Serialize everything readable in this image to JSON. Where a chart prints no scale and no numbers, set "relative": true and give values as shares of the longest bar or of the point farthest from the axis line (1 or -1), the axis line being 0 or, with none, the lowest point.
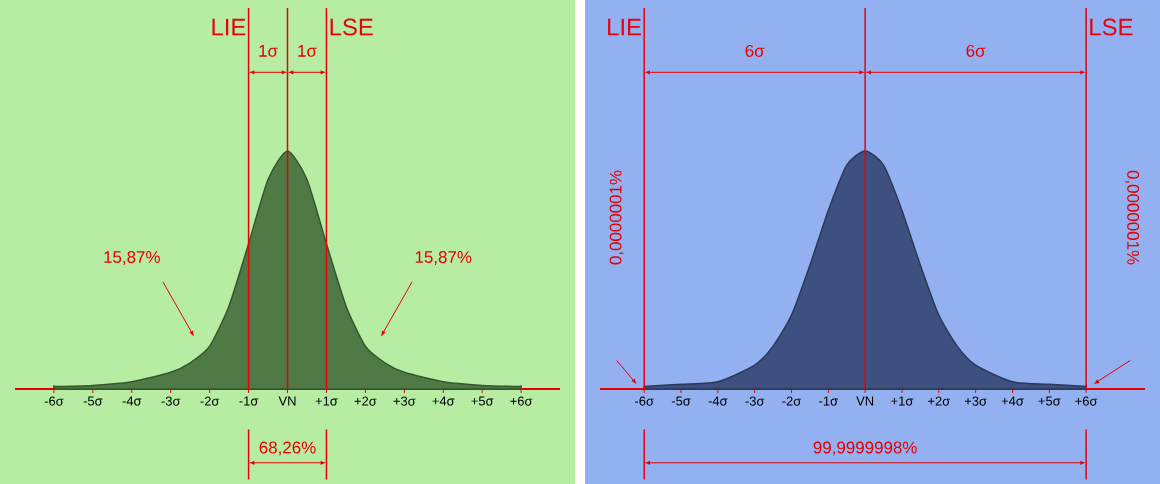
{
  "chart_data": [
    {
      "type": "area",
      "relative": true,
      "x": [
        -6,
        -5,
        -4,
        -3,
        -2.5,
        -2,
        -1.5,
        -1,
        -0.5,
        0,
        0.5,
        1,
        1.5,
        2,
        2.5,
        3,
        4,
        5,
        6
      ],
      "series": [
        {
          "color": "#4f7a45",
          "values": [
            0.01,
            0.015,
            0.03,
            0.07,
            0.11,
            0.18,
            0.35,
            0.61,
            0.88,
            1,
            0.88,
            0.61,
            0.35,
            0.18,
            0.11,
            0.07,
            0.03,
            0.015,
            0.01
          ]
        }
      ],
      "xlim": [
        -7,
        7
      ],
      "xticks": [
        {
          "value": -6,
          "label": "-6σ"
        },
        {
          "value": -5,
          "label": "-5σ"
        },
        {
          "value": -4,
          "label": "-4σ"
        },
        {
          "value": -3,
          "label": "-3σ"
        },
        {
          "value": -2,
          "label": "-2σ"
        },
        {
          "value": -1,
          "label": "-1σ"
        },
        {
          "value": 0,
          "label": "VN"
        },
        {
          "value": 1,
          "label": "+1σ"
        },
        {
          "value": 2,
          "label": "+2σ"
        },
        {
          "value": 3,
          "label": "+3σ"
        },
        {
          "value": 4,
          "label": "+4σ"
        },
        {
          "value": 5,
          "label": "+5σ"
        },
        {
          "value": 6,
          "label": "+6σ"
        }
      ],
      "ref_lines": [
        {
          "axis": "x",
          "value": -1,
          "label": "LIE",
          "color": "#e8000b"
        },
        {
          "axis": "x",
          "value": 0,
          "color": "#e8000b"
        },
        {
          "axis": "x",
          "value": 1,
          "label": "LSE",
          "color": "#e8000b"
        }
      ],
      "annotations": [
        "1σ",
        "1σ",
        "15,87%",
        "15,87%",
        "68,26%"
      ]
    },
    {
      "type": "area",
      "relative": true,
      "x": [
        -6,
        -5,
        -4,
        -3,
        -2.5,
        -2,
        -1.5,
        -1,
        -0.5,
        0,
        0.5,
        1,
        1.5,
        2,
        2.5,
        3,
        4,
        5,
        6
      ],
      "series": [
        {
          "color": "#3d5080",
          "values": [
            0.01,
            0.02,
            0.03,
            0.1,
            0.18,
            0.31,
            0.52,
            0.75,
            0.94,
            1,
            0.94,
            0.75,
            0.52,
            0.31,
            0.18,
            0.1,
            0.03,
            0.02,
            0.01
          ]
        }
      ],
      "xlim": [
        -7.2,
        7.6
      ],
      "xticks": [
        {
          "value": -6,
          "label": "-6σ"
        },
        {
          "value": -5,
          "label": "-5σ"
        },
        {
          "value": -4,
          "label": "-4σ"
        },
        {
          "value": -3,
          "label": "-3σ"
        },
        {
          "value": -2,
          "label": "-2σ"
        },
        {
          "value": -1,
          "label": "-1σ"
        },
        {
          "value": 0,
          "label": "VN"
        },
        {
          "value": 1,
          "label": "+1σ"
        },
        {
          "value": 2,
          "label": "+2σ"
        },
        {
          "value": 3,
          "label": "+3σ"
        },
        {
          "value": 4,
          "label": "+4σ"
        },
        {
          "value": 5,
          "label": "+5σ"
        },
        {
          "value": 6,
          "label": "+6σ"
        }
      ],
      "ref_lines": [
        {
          "axis": "x",
          "value": -6,
          "label": "LIE",
          "color": "#e8000b"
        },
        {
          "axis": "x",
          "value": 0,
          "color": "#e8000b"
        },
        {
          "axis": "x",
          "value": 6,
          "label": "LSE",
          "color": "#e8000b"
        }
      ],
      "annotations": [
        "6σ",
        "6σ",
        "0,0000001%",
        "0,0000001%",
        "99,9999998%"
      ]
    }
  ]
}
